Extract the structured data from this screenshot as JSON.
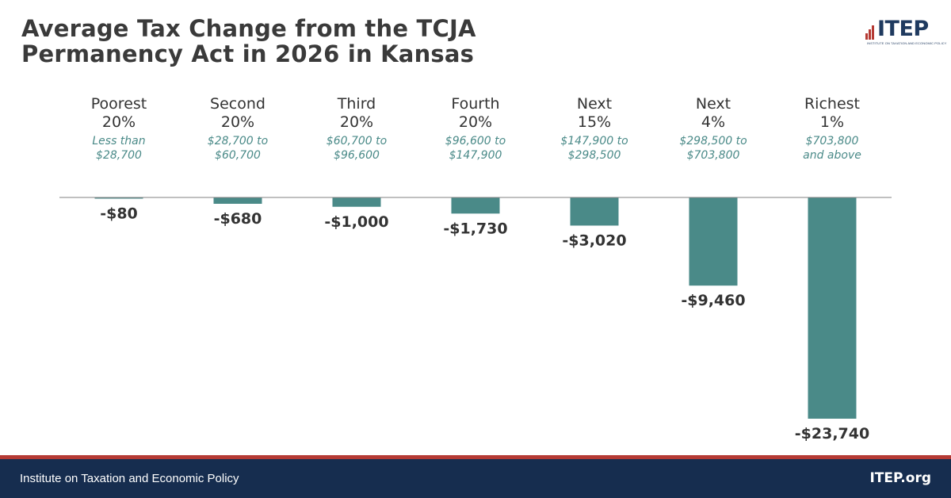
{
  "header": {
    "title_lines": [
      "Average Tax Change from the TCJA",
      "Permanency Act in 2026 in Kansas"
    ]
  },
  "logo": {
    "text": "ITEP",
    "subtitle": "INSTITUTE ON TAXATION AND ECONOMIC POLICY",
    "color": "#1f3a5f",
    "accent": "#b53a34"
  },
  "footer": {
    "left_text": "Institute on Taxation and Economic Policy",
    "right_text": "ITEP.org"
  },
  "colors": {
    "bar": "#4a8a88",
    "range_text": "#4a8a88",
    "axis": "#808080",
    "footer_bg": "#162d4f",
    "footer_stripe": "#b53a34"
  },
  "chart_data": {
    "type": "bar",
    "title": "Average Tax Change from the TCJA Permanency Act in 2026 in Kansas",
    "categories": [
      {
        "group": [
          "Poorest",
          "20%"
        ],
        "range": [
          "Less than",
          "$28,700"
        ]
      },
      {
        "group": [
          "Second",
          "20%"
        ],
        "range": [
          "$28,700 to",
          "$60,700"
        ]
      },
      {
        "group": [
          "Third",
          "20%"
        ],
        "range": [
          "$60,700 to",
          "$96,600"
        ]
      },
      {
        "group": [
          "Fourth",
          "20%"
        ],
        "range": [
          "$96,600 to",
          "$147,900"
        ]
      },
      {
        "group": [
          "Next",
          "15%"
        ],
        "range": [
          "$147,900 to",
          "$298,500"
        ]
      },
      {
        "group": [
          "Next",
          "4%"
        ],
        "range": [
          "$298,500 to",
          "$703,800"
        ]
      },
      {
        "group": [
          "Richest",
          "1%"
        ],
        "range": [
          "$703,800",
          "and above"
        ]
      }
    ],
    "values": [
      -80,
      -680,
      -1000,
      -1730,
      -3020,
      -9460,
      -23740
    ],
    "value_labels": [
      "-$80",
      "-$680",
      "-$1,000",
      "-$1,730",
      "-$3,020",
      "-$9,460",
      "-$23,740"
    ],
    "ylabel": "",
    "xlabel": "",
    "ylim": [
      -23740,
      0
    ]
  }
}
